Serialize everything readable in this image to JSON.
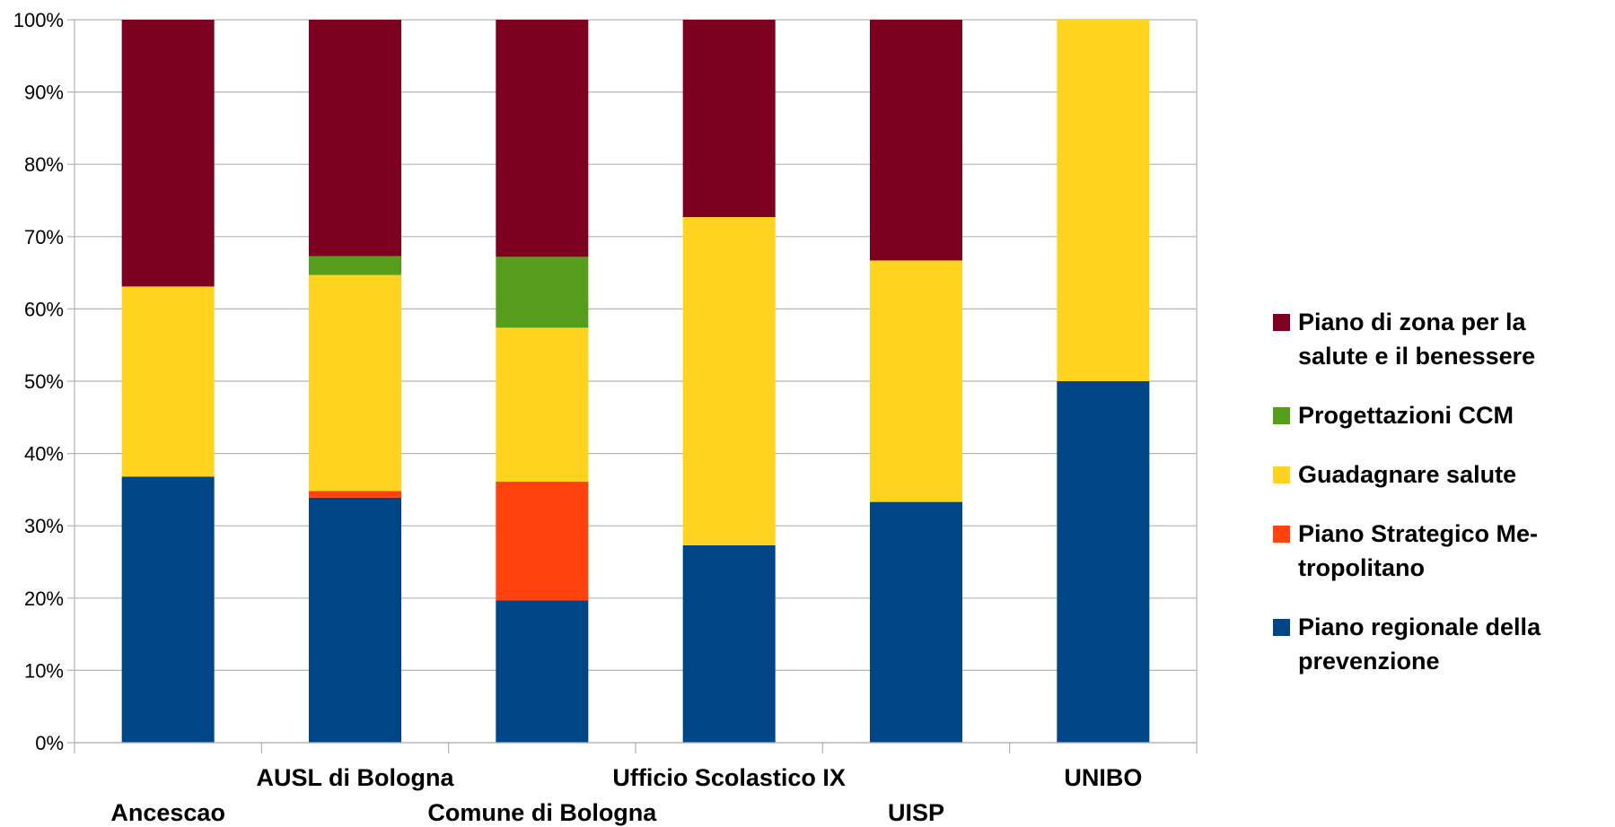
{
  "chart_data": {
    "type": "bar",
    "stacked": true,
    "percent": true,
    "categories": [
      "Ancescao",
      "AUSL di Bologna",
      "Comune di Bologna",
      "Ufficio Scolastico IX",
      "UISP",
      "UNIBO"
    ],
    "y_ticks": [
      "0%",
      "10%",
      "20%",
      "30%",
      "40%",
      "50%",
      "60%",
      "70%",
      "80%",
      "90%",
      "100%"
    ],
    "ylim": [
      0,
      100
    ],
    "grid": true,
    "legend_position": "right",
    "series": [
      {
        "name": "Piano regionale della prevenzione",
        "color": "#004586",
        "values": [
          36.8,
          33.9,
          19.7,
          27.3,
          33.3,
          50.0
        ]
      },
      {
        "name": "Piano Strategico Metropolitano",
        "color": "#ff420e",
        "values": [
          0,
          0.9,
          16.4,
          0,
          0,
          0
        ]
      },
      {
        "name": "Guadagnare salute",
        "color": "#ffd320",
        "values": [
          26.3,
          29.9,
          21.3,
          45.4,
          33.4,
          50.0
        ]
      },
      {
        "name": "Progettazioni CCM",
        "color": "#579d1c",
        "values": [
          0,
          2.6,
          9.8,
          0,
          0,
          0
        ]
      },
      {
        "name": "Piano di zona per la salute e il benessere",
        "color": "#7e0021",
        "values": [
          36.9,
          32.7,
          32.8,
          27.3,
          33.3,
          0
        ]
      }
    ],
    "legend_labels": [
      "Piano di zona per la salute e il benessere",
      "Progettazioni CCM",
      "Guadagnare salute",
      "Piano Strategico Me-tropolitano",
      "Piano regionale della prevenzione"
    ]
  }
}
